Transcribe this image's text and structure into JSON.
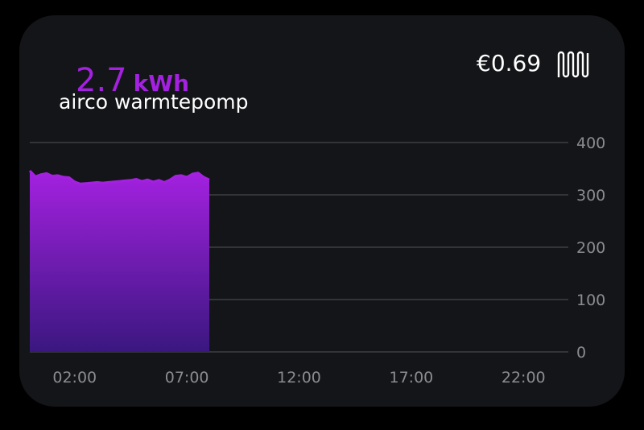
{
  "header": {
    "value": "2.7",
    "unit": "kWh",
    "name": "airco warmtepomp",
    "cost": "€0.69",
    "icon": "radiator-icon"
  },
  "colors": {
    "accent": "#a421e0",
    "fill_bottom": "#3a1780",
    "grid": "#3c3e43",
    "tick": "#8a8c90"
  },
  "chart_data": {
    "type": "area",
    "x_unit": "hour of day",
    "xlim": [
      0,
      24
    ],
    "ylim": [
      0,
      400
    ],
    "grid": true,
    "x_ticks": [
      "02:00",
      "07:00",
      "12:00",
      "17:00",
      "22:00"
    ],
    "y_ticks": [
      "0",
      "100",
      "200",
      "300",
      "400"
    ],
    "x": [
      0,
      0.25,
      0.5,
      0.75,
      1,
      1.25,
      1.5,
      1.75,
      2,
      2.25,
      2.5,
      2.75,
      3,
      3.25,
      3.5,
      3.75,
      4,
      4.25,
      4.5,
      4.75,
      5,
      5.25,
      5.5,
      5.75,
      6,
      6.25,
      6.5,
      6.75,
      7,
      7.25,
      7.5,
      7.75,
      8
    ],
    "values": [
      346,
      335,
      339,
      341,
      336,
      337,
      334,
      333,
      325,
      321,
      322,
      323,
      324,
      323,
      324,
      325,
      326,
      327,
      328,
      330,
      326,
      329,
      325,
      328,
      324,
      329,
      336,
      337,
      334,
      340,
      342,
      334,
      329
    ]
  }
}
